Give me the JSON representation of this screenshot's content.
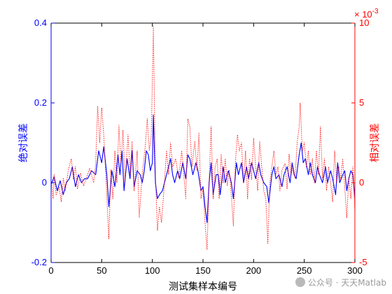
{
  "chart_data": {
    "type": "line",
    "xlabel": "测试集样本编号",
    "ylabel_left": "绝对误差",
    "ylabel_right": "相对误差",
    "right_exponent": "× 10",
    "right_exponent_power": "-3",
    "xlim": [
      0,
      300
    ],
    "ylim_left": [
      -0.2,
      0.4
    ],
    "ylim_right": [
      -5,
      10
    ],
    "xticks": [
      0,
      50,
      100,
      150,
      200,
      250,
      300
    ],
    "yticks_left": [
      -0.2,
      0,
      0.2,
      0.4
    ],
    "yticks_right": [
      -5,
      0,
      5,
      10
    ],
    "grid": false,
    "colors": {
      "absolute": "#0000ff",
      "relative": "#ff0000",
      "axis": "#000000"
    },
    "series": [
      {
        "axis": "left",
        "style": "solid",
        "anchors": [
          [
            0,
            -0.005
          ],
          [
            3,
            0.015
          ],
          [
            6,
            -0.02
          ],
          [
            9,
            0.005
          ],
          [
            12,
            -0.03
          ],
          [
            15,
            0.0
          ],
          [
            18,
            0.01
          ],
          [
            21,
            0.04
          ],
          [
            24,
            -0.01
          ],
          [
            27,
            0.02
          ],
          [
            30,
            0.0
          ],
          [
            33,
            0.01
          ],
          [
            36,
            0.01
          ],
          [
            40,
            0.03
          ],
          [
            44,
            0.02
          ],
          [
            47,
            0.08
          ],
          [
            50,
            0.05
          ],
          [
            52,
            0.09
          ],
          [
            55,
            0.02
          ],
          [
            57,
            -0.06
          ],
          [
            60,
            0.03
          ],
          [
            63,
            -0.01
          ],
          [
            66,
            0.07
          ],
          [
            68,
            0.02
          ],
          [
            70,
            0.08
          ],
          [
            72,
            -0.02
          ],
          [
            75,
            0.06
          ],
          [
            78,
            0.01
          ],
          [
            80,
            0.08
          ],
          [
            82,
            -0.01
          ],
          [
            85,
            0.03
          ],
          [
            88,
            0.02
          ],
          [
            90,
            0.0
          ],
          [
            92,
            0.03
          ],
          [
            94,
            0.08
          ],
          [
            96,
            0.07
          ],
          [
            98,
            0.03
          ],
          [
            100,
            0.05
          ],
          [
            101,
            0.17
          ],
          [
            103,
            0.0
          ],
          [
            105,
            -0.04
          ],
          [
            107,
            -0.03
          ],
          [
            110,
            -0.02
          ],
          [
            112,
            0.0
          ],
          [
            115,
            0.03
          ],
          [
            118,
            0.06
          ],
          [
            120,
            0.02
          ],
          [
            122,
            0.0
          ],
          [
            125,
            0.03
          ],
          [
            127,
            0.01
          ],
          [
            130,
            0.05
          ],
          [
            133,
            0.01
          ],
          [
            135,
            0.07
          ],
          [
            137,
            0.06
          ],
          [
            140,
            0.02
          ],
          [
            143,
            0.05
          ],
          [
            145,
            0.03
          ],
          [
            148,
            -0.02
          ],
          [
            150,
            -0.01
          ],
          [
            152,
            -0.06
          ],
          [
            154,
            -0.1
          ],
          [
            156,
            0.0
          ],
          [
            158,
            0.05
          ],
          [
            160,
            -0.03
          ],
          [
            163,
            0.02
          ],
          [
            165,
            0.02
          ],
          [
            167,
            -0.03
          ],
          [
            170,
            0.04
          ],
          [
            172,
            0.0
          ],
          [
            175,
            0.03
          ],
          [
            178,
            0.0
          ],
          [
            180,
            -0.04
          ],
          [
            183,
            0.05
          ],
          [
            185,
            0.02
          ],
          [
            188,
            0.05
          ],
          [
            190,
            0.0
          ],
          [
            193,
            0.04
          ],
          [
            195,
            0.01
          ],
          [
            198,
            0.05
          ],
          [
            200,
            0.03
          ],
          [
            202,
            0.01
          ],
          [
            205,
            0.05
          ],
          [
            207,
            0.02
          ],
          [
            210,
            0.0
          ],
          [
            213,
            -0.01
          ],
          [
            215,
            -0.05
          ],
          [
            218,
            0.02
          ],
          [
            220,
            0.04
          ],
          [
            222,
            0.01
          ],
          [
            225,
            0.02
          ],
          [
            228,
            -0.01
          ],
          [
            230,
            0.02
          ],
          [
            233,
            0.04
          ],
          [
            236,
            0.0
          ],
          [
            238,
            0.05
          ],
          [
            240,
            0.02
          ],
          [
            242,
            0.01
          ],
          [
            245,
            0.07
          ],
          [
            247,
            0.1
          ],
          [
            249,
            0.05
          ],
          [
            251,
            0.06
          ],
          [
            254,
            0.02
          ],
          [
            256,
            0.05
          ],
          [
            258,
            0.02
          ],
          [
            261,
            0.0
          ],
          [
            263,
            0.04
          ],
          [
            265,
            0.02
          ],
          [
            268,
            0.0
          ],
          [
            271,
            0.04
          ],
          [
            273,
            0.0
          ],
          [
            276,
            0.03
          ],
          [
            278,
            0.01
          ],
          [
            281,
            -0.03
          ],
          [
            283,
            0.05
          ],
          [
            285,
            0.0
          ],
          [
            288,
            0.02
          ],
          [
            290,
            0.03
          ],
          [
            292,
            -0.02
          ],
          [
            294,
            0.01
          ],
          [
            296,
            0.03
          ],
          [
            298,
            0.02
          ],
          [
            300,
            -0.04
          ]
        ]
      },
      {
        "axis": "right",
        "style": "dotted",
        "anchors": [
          [
            0,
            0.2
          ],
          [
            2,
            -1.0
          ],
          [
            3,
            0.5
          ],
          [
            5,
            -0.8
          ],
          [
            8,
            -0.3
          ],
          [
            10,
            -1.2
          ],
          [
            12,
            0.3
          ],
          [
            14,
            -0.5
          ],
          [
            17,
            0.8
          ],
          [
            20,
            1.5
          ],
          [
            22,
            0.2
          ],
          [
            24,
            1.0
          ],
          [
            26,
            -0.4
          ],
          [
            29,
            0.6
          ],
          [
            32,
            -0.2
          ],
          [
            35,
            0.3
          ],
          [
            38,
            0.9
          ],
          [
            42,
            0.0
          ],
          [
            44,
            1.2
          ],
          [
            46,
            4.8
          ],
          [
            48,
            2.5
          ],
          [
            50,
            4.7
          ],
          [
            52,
            3.0
          ],
          [
            54,
            0.5
          ],
          [
            57,
            -3.5
          ],
          [
            59,
            0.8
          ],
          [
            61,
            -1.0
          ],
          [
            63,
            2.0
          ],
          [
            65,
            0.0
          ],
          [
            67,
            3.6
          ],
          [
            69,
            1.2
          ],
          [
            71,
            3.3
          ],
          [
            73,
            0.0
          ],
          [
            76,
            3.0
          ],
          [
            78,
            0.5
          ],
          [
            80,
            2.6
          ],
          [
            82,
            -0.5
          ],
          [
            85,
            2.0
          ],
          [
            87,
            -2.2
          ],
          [
            90,
            0.5
          ],
          [
            93,
            2.3
          ],
          [
            95,
            4.0
          ],
          [
            97,
            2.0
          ],
          [
            99,
            3.0
          ],
          [
            101,
            9.8
          ],
          [
            103,
            0.5
          ],
          [
            105,
            -3.0
          ],
          [
            107,
            -1.5
          ],
          [
            109,
            -2.5
          ],
          [
            111,
            -0.8
          ],
          [
            114,
            2.0
          ],
          [
            116,
            0.5
          ],
          [
            118,
            2.5
          ],
          [
            120,
            1.0
          ],
          [
            123,
            1.5
          ],
          [
            126,
            0.3
          ],
          [
            129,
            2.0
          ],
          [
            131,
            0.5
          ],
          [
            133,
            -1.0
          ],
          [
            135,
            4.0
          ],
          [
            137,
            3.5
          ],
          [
            139,
            1.0
          ],
          [
            142,
            2.6
          ],
          [
            144,
            0.8
          ],
          [
            146,
            3.1
          ],
          [
            148,
            -1.0
          ],
          [
            150,
            -0.4
          ],
          [
            152,
            -2.5
          ],
          [
            154,
            -4.2
          ],
          [
            156,
            0.0
          ],
          [
            158,
            3.5
          ],
          [
            160,
            -1.0
          ],
          [
            162,
            1.0
          ],
          [
            164,
            1.5
          ],
          [
            166,
            -1.0
          ],
          [
            168,
            1.8
          ],
          [
            170,
            0.0
          ],
          [
            172,
            1.5
          ],
          [
            174,
            -0.2
          ],
          [
            176,
            0.8
          ],
          [
            178,
            -0.8
          ],
          [
            180,
            -2.7
          ],
          [
            182,
            1.3
          ],
          [
            184,
            3.0
          ],
          [
            186,
            2.0
          ],
          [
            188,
            2.5
          ],
          [
            190,
            0.0
          ],
          [
            192,
            2.0
          ],
          [
            194,
            -1.0
          ],
          [
            196,
            1.5
          ],
          [
            198,
            0.2
          ],
          [
            200,
            2.8
          ],
          [
            202,
            1.0
          ],
          [
            204,
            -0.5
          ],
          [
            206,
            2.6
          ],
          [
            208,
            1.0
          ],
          [
            210,
            -0.5
          ],
          [
            212,
            -1.0
          ],
          [
            214,
            -3.8
          ],
          [
            216,
            0.0
          ],
          [
            218,
            1.0
          ],
          [
            220,
            2.0
          ],
          [
            222,
            0.5
          ],
          [
            224,
            1.0
          ],
          [
            226,
            -0.5
          ],
          [
            228,
            0.8
          ],
          [
            231,
            1.2
          ],
          [
            233,
            -0.4
          ],
          [
            235,
            1.8
          ],
          [
            237,
            0.5
          ],
          [
            239,
            1.0
          ],
          [
            241,
            0.3
          ],
          [
            243,
            2.5
          ],
          [
            245,
            3.5
          ],
          [
            246,
            5.0
          ],
          [
            248,
            2.0
          ],
          [
            250,
            2.5
          ],
          [
            252,
            1.0
          ],
          [
            254,
            2.0
          ],
          [
            256,
            0.5
          ],
          [
            258,
            1.5
          ],
          [
            260,
            0.0
          ],
          [
            262,
            2.0
          ],
          [
            264,
            0.5
          ],
          [
            266,
            3.5
          ],
          [
            268,
            0.3
          ],
          [
            270,
            1.5
          ],
          [
            272,
            -0.5
          ],
          [
            274,
            1.0
          ],
          [
            276,
            0.0
          ],
          [
            278,
            -1.2
          ],
          [
            280,
            2.0
          ],
          [
            282,
            0.0
          ],
          [
            284,
            1.0
          ],
          [
            286,
            0.2
          ],
          [
            288,
            1.5
          ],
          [
            290,
            -0.3
          ],
          [
            292,
            -2.2
          ],
          [
            294,
            0.3
          ],
          [
            296,
            -1.0
          ],
          [
            298,
            1.0
          ],
          [
            300,
            -1.8
          ]
        ]
      }
    ],
    "watermark": "公众号 · 天天Matlab"
  }
}
